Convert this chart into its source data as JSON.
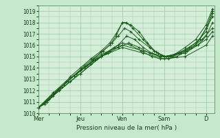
{
  "title": "",
  "xlabel": "Pression niveau de la mer( hPa )",
  "ylabel": "",
  "bg_color": "#c6e8cc",
  "plot_bg_color": "#d4eeda",
  "grid_color": "#98c8a0",
  "line_color": "#1a5c1a",
  "marker_color": "#1a5c1a",
  "ylim": [
    1010,
    1019.5
  ],
  "yticks": [
    1010,
    1011,
    1012,
    1013,
    1014,
    1015,
    1016,
    1017,
    1018,
    1019
  ],
  "xtick_labels": [
    "Mer",
    "Jeu",
    "Ven",
    "Sam",
    "D"
  ],
  "xtick_positions": [
    0,
    1,
    2,
    3,
    4
  ],
  "xlim": [
    0,
    4.2
  ],
  "lines": [
    {
      "x": [
        0.0,
        0.15,
        0.35,
        0.55,
        0.75,
        1.0,
        1.25,
        1.5,
        1.7,
        1.85,
        2.0,
        2.1,
        2.25,
        2.5,
        2.75,
        3.0,
        3.25,
        3.5,
        3.75,
        4.0,
        4.15
      ],
      "y": [
        1010.5,
        1010.8,
        1011.5,
        1012.3,
        1013.2,
        1014.0,
        1014.8,
        1015.5,
        1016.2,
        1017.0,
        1018.0,
        1018.0,
        1017.5,
        1016.5,
        1015.5,
        1015.0,
        1015.2,
        1015.8,
        1016.5,
        1017.8,
        1019.2
      ]
    },
    {
      "x": [
        0.0,
        0.2,
        0.4,
        0.6,
        0.85,
        1.1,
        1.3,
        1.5,
        1.7,
        1.85,
        2.0,
        2.2,
        2.4,
        2.6,
        2.8,
        3.0,
        3.2,
        3.5,
        3.75,
        4.0,
        4.15
      ],
      "y": [
        1010.5,
        1011.0,
        1011.8,
        1012.5,
        1013.3,
        1014.0,
        1014.7,
        1015.4,
        1016.0,
        1016.8,
        1018.0,
        1017.8,
        1017.2,
        1016.2,
        1015.4,
        1015.0,
        1015.0,
        1015.5,
        1016.0,
        1017.5,
        1019.0
      ]
    },
    {
      "x": [
        0.0,
        0.2,
        0.45,
        0.7,
        0.9,
        1.1,
        1.3,
        1.55,
        1.75,
        1.9,
        2.05,
        2.2,
        2.4,
        2.65,
        2.85,
        3.05,
        3.25,
        3.5,
        3.75,
        4.0,
        4.15
      ],
      "y": [
        1010.5,
        1011.0,
        1012.0,
        1012.8,
        1013.5,
        1014.2,
        1014.8,
        1015.5,
        1016.2,
        1016.8,
        1017.5,
        1017.2,
        1016.5,
        1015.8,
        1015.3,
        1015.0,
        1015.2,
        1015.6,
        1016.2,
        1017.2,
        1018.8
      ]
    },
    {
      "x": [
        0.0,
        0.25,
        0.5,
        0.75,
        1.0,
        1.25,
        1.5,
        1.7,
        1.9,
        2.1,
        2.3,
        2.5,
        2.7,
        2.9,
        3.1,
        3.35,
        3.6,
        3.85,
        4.15
      ],
      "y": [
        1010.5,
        1011.2,
        1012.0,
        1012.8,
        1013.5,
        1014.3,
        1015.0,
        1015.5,
        1016.0,
        1016.8,
        1016.5,
        1015.8,
        1015.3,
        1015.0,
        1015.0,
        1015.3,
        1015.8,
        1016.5,
        1018.5
      ]
    },
    {
      "x": [
        0.0,
        0.3,
        0.6,
        0.85,
        1.1,
        1.35,
        1.6,
        1.8,
        2.0,
        2.2,
        2.45,
        2.7,
        2.9,
        3.1,
        3.3,
        3.55,
        3.8,
        4.0,
        4.15
      ],
      "y": [
        1010.5,
        1011.5,
        1012.5,
        1013.3,
        1014.0,
        1014.7,
        1015.3,
        1015.8,
        1016.2,
        1016.0,
        1015.5,
        1015.0,
        1014.8,
        1014.8,
        1015.0,
        1015.5,
        1016.0,
        1016.8,
        1018.0
      ]
    },
    {
      "x": [
        0.0,
        0.35,
        0.65,
        0.9,
        1.15,
        1.4,
        1.65,
        1.9,
        2.15,
        2.4,
        2.65,
        2.9,
        3.15,
        3.4,
        3.65,
        3.9,
        4.15
      ],
      "y": [
        1010.5,
        1011.8,
        1012.8,
        1013.5,
        1014.2,
        1014.8,
        1015.3,
        1015.8,
        1016.2,
        1015.8,
        1015.3,
        1015.0,
        1015.0,
        1015.3,
        1015.8,
        1016.5,
        1017.5
      ]
    },
    {
      "x": [
        0.0,
        0.5,
        1.0,
        1.5,
        2.0,
        2.5,
        3.0,
        3.5,
        4.0,
        4.15
      ],
      "y": [
        1010.5,
        1012.2,
        1013.8,
        1015.2,
        1016.0,
        1015.5,
        1015.0,
        1015.3,
        1016.5,
        1017.2
      ]
    },
    {
      "x": [
        0.0,
        0.5,
        1.0,
        1.5,
        2.0,
        2.5,
        3.0,
        3.5,
        4.0,
        4.15
      ],
      "y": [
        1010.5,
        1012.0,
        1013.5,
        1015.0,
        1015.8,
        1015.3,
        1014.8,
        1015.0,
        1016.0,
        1016.8
      ]
    }
  ]
}
